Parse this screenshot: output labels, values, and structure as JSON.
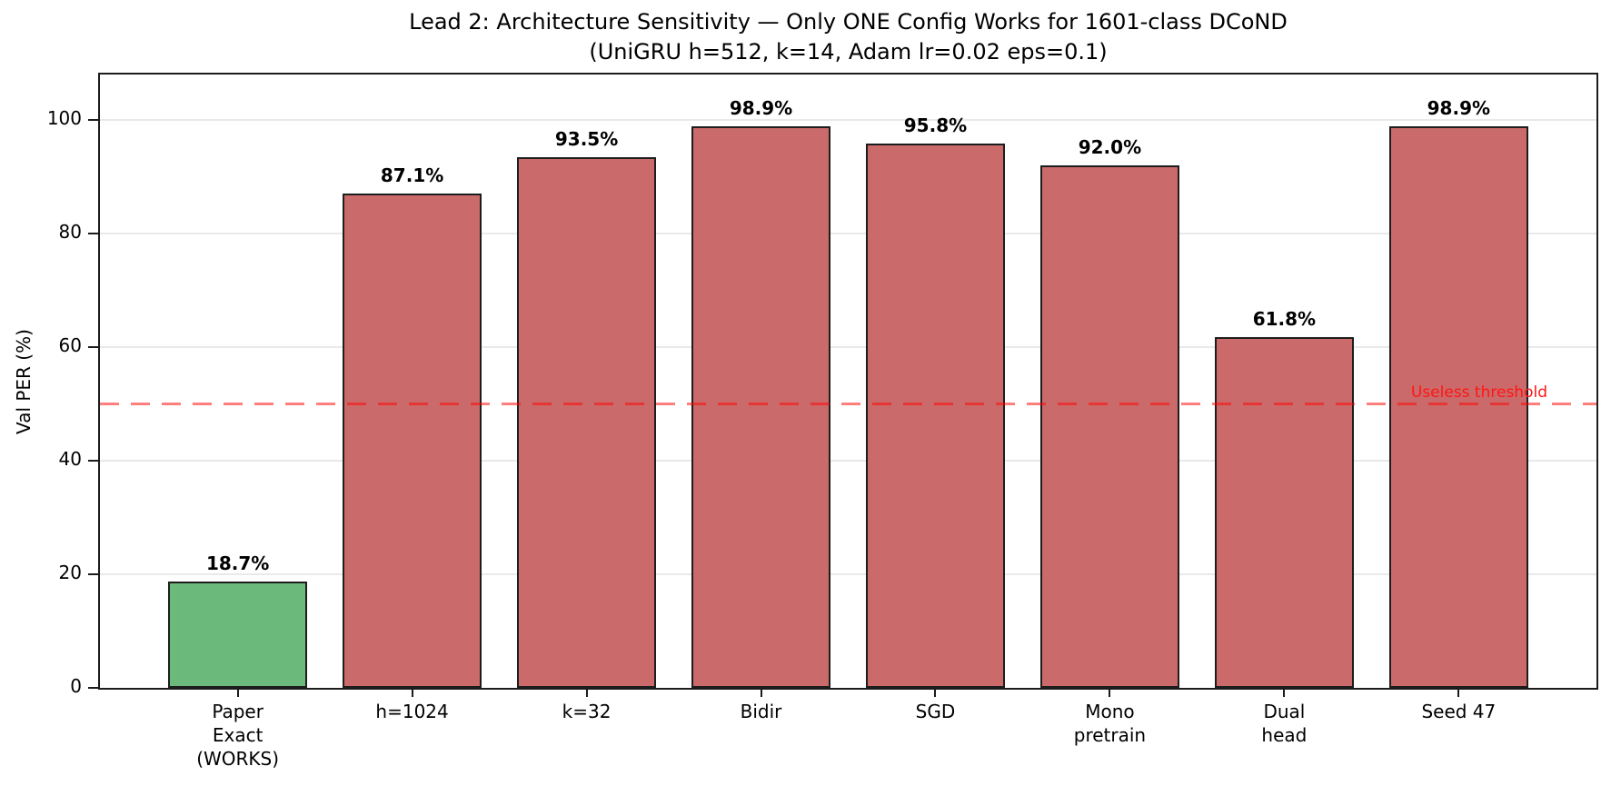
{
  "chart_data": {
    "type": "bar",
    "title": "Lead 2: Architecture Sensitivity — Only ONE Config Works for 1601-class DCoND",
    "subtitle": "(UniGRU h=512, k=14, Adam lr=0.02 eps=0.1)",
    "ylabel": "Val PER (%)",
    "ylim": [
      0,
      108
    ],
    "yticks": [
      0,
      20,
      40,
      60,
      80,
      100
    ],
    "grid": true,
    "legend_position": "none",
    "categories": [
      "Paper\nExact\n(WORKS)",
      "h=1024",
      "k=32",
      "Bidir",
      "SGD",
      "Mono\npretrain",
      "Dual\nhead",
      "Seed 47"
    ],
    "values": [
      18.7,
      87.1,
      93.5,
      98.9,
      95.8,
      92.0,
      61.8,
      98.9
    ],
    "value_labels": [
      "18.7%",
      "87.1%",
      "93.5%",
      "98.9%",
      "95.8%",
      "92.0%",
      "61.8%",
      "98.9%"
    ],
    "bar_colors": [
      "#6cb97c",
      "#cb6a6a",
      "#cb6a6a",
      "#cb6a6a",
      "#cb6a6a",
      "#cb6a6a",
      "#cb6a6a",
      "#cb6a6a"
    ],
    "bar_edge_color": "#1d1d1d",
    "threshold": {
      "value": 50,
      "label": "Useless threshold",
      "label_color": "#ff1515",
      "line_color_rgba": "rgba(255,0,0,0.5)"
    },
    "grid_color": "#e9e9e9",
    "spine_color": "#1c1c1c"
  }
}
